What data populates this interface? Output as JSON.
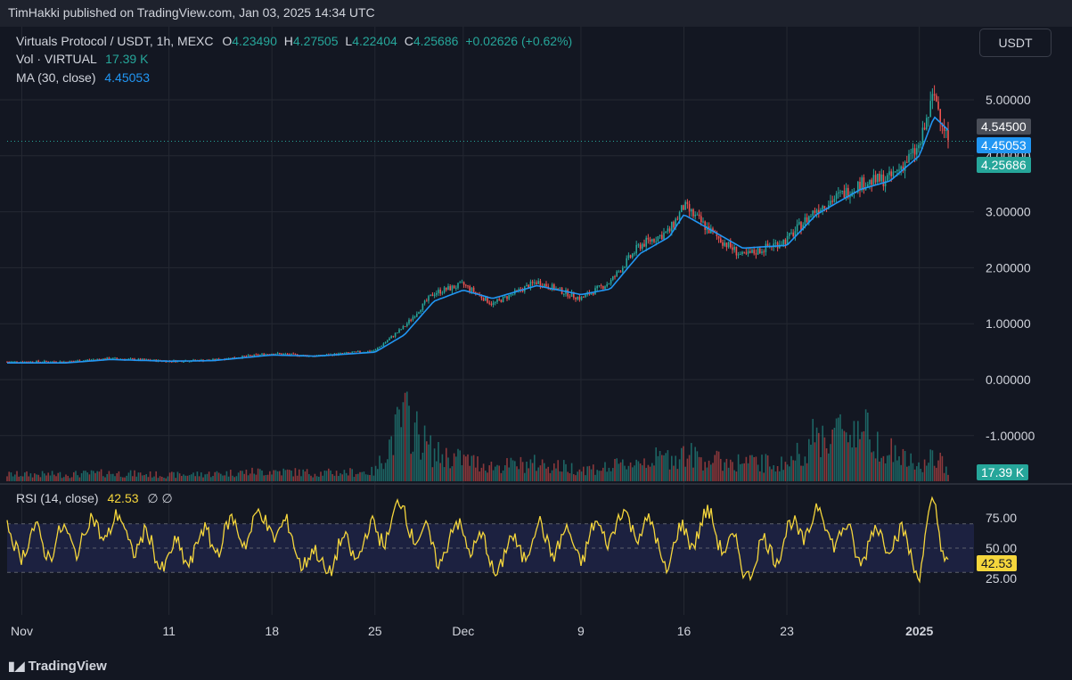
{
  "header": {
    "published": "TimHakki published on TradingView.com, Jan 03, 2025 14:34 UTC"
  },
  "legend": {
    "symbol": "Virtuals Protocol / USDT, 1h, MEXC",
    "o_label": "O",
    "o_value": "4.23490",
    "h_label": "H",
    "h_value": "4.27505",
    "l_label": "L",
    "l_value": "4.22404",
    "c_label": "C",
    "c_value": "4.25686",
    "change": "+0.02626 (+0.62%)",
    "vol_label": "Vol · VIRTUAL",
    "vol_value": "17.39 K",
    "ma_label": "MA (30, close)",
    "ma_value": "4.45053",
    "rsi_label": "RSI (14, close)",
    "rsi_value": "42.53",
    "rsi_extra": "∅  ∅"
  },
  "currency_button": "USDT",
  "price_tags": {
    "high_tag": "4.54500",
    "ma_tag": "4.45053",
    "last_tag": "4.25686",
    "vol_tag": "17.39 K",
    "rsi_tag": "42.53"
  },
  "footer": {
    "logo": "TradingView"
  },
  "colors": {
    "up": "#26a69a",
    "down": "#ef5350",
    "ma": "#2196f3",
    "rsi": "#f5d63c",
    "background": "#131722",
    "grid": "#242832"
  },
  "chart_data": [
    {
      "type": "line",
      "title": "Virtuals Protocol / USDT, 1h, MEXC",
      "xlabel": "",
      "ylabel": "",
      "y_ticks": [
        "5.00000",
        "4.00000",
        "3.00000",
        "2.00000",
        "1.00000",
        "0.00000",
        "-1.00000"
      ],
      "ylim": [
        -1.3,
        5.4
      ],
      "x_ticks": [
        "Nov",
        "11",
        "18",
        "25",
        "Dec",
        "9",
        "16",
        "23",
        "2025"
      ],
      "x": [
        "2024-11-04",
        "2024-11-07",
        "2024-11-11",
        "2024-11-14",
        "2024-11-18",
        "2024-11-21",
        "2024-11-25",
        "2024-11-27",
        "2024-11-29",
        "2024-12-01",
        "2024-12-03",
        "2024-12-06",
        "2024-12-09",
        "2024-12-11",
        "2024-12-13",
        "2024-12-15",
        "2024-12-16",
        "2024-12-18",
        "2024-12-20",
        "2024-12-23",
        "2024-12-25",
        "2024-12-28",
        "2024-12-30",
        "2025-01-01",
        "2025-01-02",
        "2025-01-03"
      ],
      "series": [
        {
          "values": [
            0.32,
            0.38,
            0.33,
            0.35,
            0.47,
            0.42,
            0.52,
            0.95,
            1.55,
            1.7,
            1.35,
            1.75,
            1.45,
            1.75,
            2.4,
            2.65,
            3.1,
            2.6,
            2.2,
            2.5,
            3.05,
            3.5,
            3.6,
            4.15,
            5.1,
            4.26
          ]
        },
        {
          "name": "MA (30, close)",
          "values": [
            0.3,
            0.36,
            0.33,
            0.34,
            0.44,
            0.42,
            0.49,
            0.8,
            1.4,
            1.6,
            1.45,
            1.68,
            1.52,
            1.62,
            2.25,
            2.55,
            2.95,
            2.65,
            2.35,
            2.4,
            2.95,
            3.4,
            3.55,
            4.0,
            4.7,
            4.45
          ]
        }
      ],
      "volume_approx_k": [
        10,
        12,
        9,
        11,
        15,
        12,
        14,
        95,
        40,
        32,
        22,
        26,
        18,
        20,
        30,
        35,
        40,
        30,
        28,
        25,
        65,
        80,
        45,
        20,
        35,
        17.39
      ]
    },
    {
      "type": "line",
      "title": "RSI (14, close)",
      "y_ticks": [
        "75.00",
        "50.00",
        "25.00"
      ],
      "ylim": [
        15,
        95
      ],
      "bands": [
        30,
        70
      ],
      "series": [
        {
          "name": "RSI (14, close)",
          "values": [
            55,
            70,
            40,
            58,
            72,
            35,
            60,
            80,
            45,
            65,
            38,
            60,
            50,
            68,
            72,
            40,
            62,
            70,
            35,
            58,
            75,
            48,
            64,
            38,
            80,
            42.53
          ]
        }
      ]
    }
  ]
}
